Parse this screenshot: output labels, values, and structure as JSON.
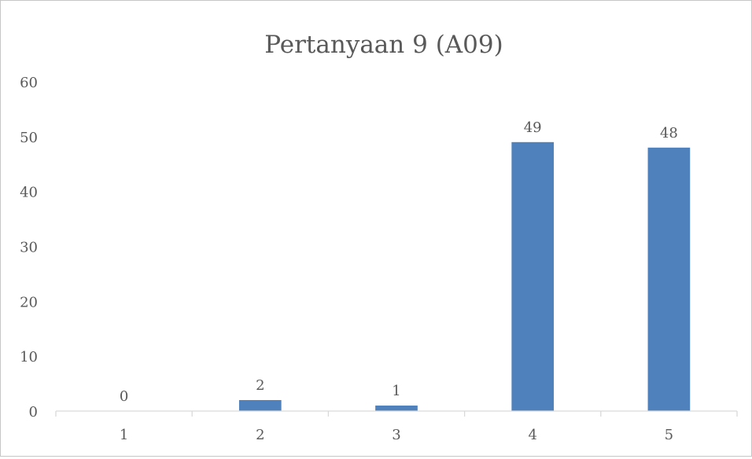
{
  "chart_data": {
    "type": "bar",
    "title": "Pertanyaan 9 (A09)",
    "xlabel": "",
    "ylabel": "",
    "categories": [
      "1",
      "2",
      "3",
      "4",
      "5"
    ],
    "values": [
      0,
      2,
      1,
      49,
      48
    ],
    "data_labels": [
      "0",
      "2",
      "1",
      "49",
      "48"
    ],
    "ylim": [
      0,
      60
    ],
    "y_ticks": [
      "0",
      "10",
      "20",
      "30",
      "40",
      "50",
      "60"
    ],
    "y_tick_values": [
      0,
      10,
      20,
      30,
      40,
      50,
      60
    ],
    "grid": false,
    "legend": "none",
    "colors": {
      "bar": "#4f81bd",
      "axis": "#d9d9d9",
      "text": "#595959"
    }
  }
}
